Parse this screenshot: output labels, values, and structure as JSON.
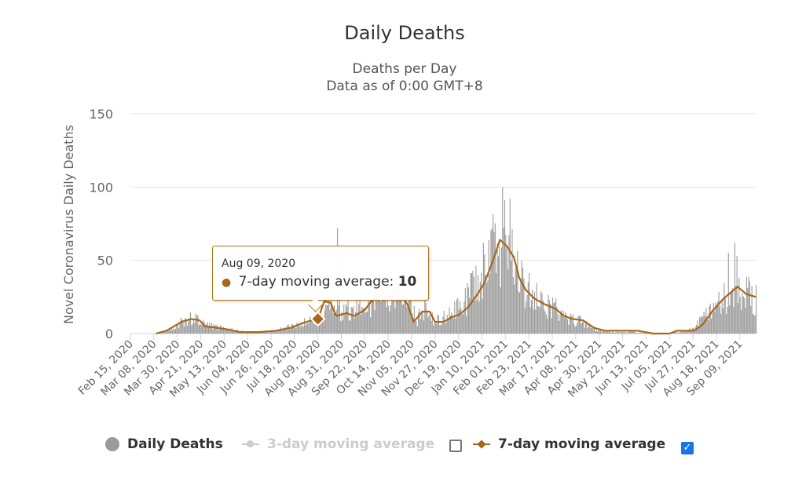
{
  "chart_data": {
    "type": "bar",
    "title": "Daily Deaths",
    "subtitle": [
      "Deaths per Day",
      "Data as of 0:00 GMT+8"
    ],
    "ylabel": "Novel Coronavirus Daily Deaths",
    "xlabel": "",
    "ylim": [
      0,
      150
    ],
    "yticks": [
      0,
      50,
      100,
      150
    ],
    "grid": true,
    "legend_position": "bottom",
    "x_start": "2020-02-15",
    "x_end": "2021-09-24",
    "xticks": [
      "Feb 15, 2020",
      "Mar 08, 2020",
      "Mar 30, 2020",
      "Apr 21, 2020",
      "May 13, 2020",
      "Jun 04, 2020",
      "Jun 26, 2020",
      "Jul 18, 2020",
      "Aug 09, 2020",
      "Aug 31, 2020",
      "Sep 22, 2020",
      "Oct 14, 2020",
      "Nov 05, 2020",
      "Nov 27, 2020",
      "Dec 19, 2020",
      "Jan 10, 2021",
      "Feb 01, 2021",
      "Feb 23, 2021",
      "Mar 17, 2021",
      "Apr 08, 2021",
      "Apr 30, 2021",
      "May 22, 2021",
      "Jun 13, 2021",
      "Jul 05, 2021",
      "Jul 27, 2021",
      "Aug 18, 2021",
      "Sep 09, 2021"
    ],
    "series": [
      {
        "name": "Daily Deaths",
        "kind": "bar",
        "color": "#9a9a9a",
        "visible": true,
        "approx_curve": [
          [
            "2020-02-15",
            0
          ],
          [
            "2020-03-10",
            0
          ],
          [
            "2020-03-20",
            2
          ],
          [
            "2020-04-03",
            8
          ],
          [
            "2020-04-12",
            11
          ],
          [
            "2020-04-22",
            7
          ],
          [
            "2020-05-05",
            4
          ],
          [
            "2020-05-18",
            3
          ],
          [
            "2020-06-01",
            1
          ],
          [
            "2020-06-20",
            1
          ],
          [
            "2020-07-05",
            3
          ],
          [
            "2020-07-22",
            6
          ],
          [
            "2020-08-09",
            10
          ],
          [
            "2020-08-20",
            20
          ],
          [
            "2020-09-05",
            15
          ],
          [
            "2020-09-22",
            16
          ],
          [
            "2020-10-05",
            26
          ],
          [
            "2020-10-20",
            30
          ],
          [
            "2020-11-01",
            25
          ],
          [
            "2020-11-10",
            10
          ],
          [
            "2020-11-20",
            18
          ],
          [
            "2020-11-27",
            8
          ],
          [
            "2020-12-10",
            12
          ],
          [
            "2020-12-25",
            22
          ],
          [
            "2021-01-10",
            40
          ],
          [
            "2021-01-22",
            58
          ],
          [
            "2021-02-05",
            52
          ],
          [
            "2021-02-15",
            35
          ],
          [
            "2021-02-28",
            25
          ],
          [
            "2021-03-17",
            18
          ],
          [
            "2021-04-01",
            10
          ],
          [
            "2021-04-15",
            8
          ],
          [
            "2021-04-28",
            2
          ],
          [
            "2021-05-15",
            1
          ],
          [
            "2021-06-01",
            1
          ],
          [
            "2021-06-20",
            0
          ],
          [
            "2021-07-15",
            1
          ],
          [
            "2021-07-27",
            3
          ],
          [
            "2021-08-10",
            14
          ],
          [
            "2021-08-25",
            25
          ],
          [
            "2021-09-05",
            30
          ],
          [
            "2021-09-24",
            24
          ]
        ],
        "peaks": [
          [
            "2020-08-27",
            72
          ],
          [
            "2021-01-29",
            100
          ],
          [
            "2021-01-31",
            91
          ],
          [
            "2021-02-05",
            92
          ],
          [
            "2021-08-29",
            55
          ],
          [
            "2021-09-04",
            62
          ],
          [
            "2021-09-06",
            53
          ]
        ]
      },
      {
        "name": "3-day moving average",
        "kind": "line",
        "color": "#cccccc",
        "visible": false,
        "values": []
      },
      {
        "name": "7-day moving average",
        "kind": "line",
        "color": "#a8661a",
        "visible": true,
        "values": [
          [
            "2020-03-10",
            0
          ],
          [
            "2020-03-20",
            2
          ],
          [
            "2020-04-03",
            8
          ],
          [
            "2020-04-12",
            10
          ],
          [
            "2020-04-20",
            9
          ],
          [
            "2020-04-25",
            5
          ],
          [
            "2020-05-05",
            4
          ],
          [
            "2020-05-15",
            3
          ],
          [
            "2020-05-28",
            1
          ],
          [
            "2020-06-15",
            1
          ],
          [
            "2020-07-01",
            2
          ],
          [
            "2020-07-15",
            4
          ],
          [
            "2020-07-25",
            7
          ],
          [
            "2020-08-03",
            9
          ],
          [
            "2020-08-09",
            10
          ],
          [
            "2020-08-15",
            22
          ],
          [
            "2020-08-21",
            21
          ],
          [
            "2020-08-26",
            12
          ],
          [
            "2020-09-05",
            14
          ],
          [
            "2020-09-12",
            12
          ],
          [
            "2020-09-22",
            16
          ],
          [
            "2020-09-28",
            22
          ],
          [
            "2020-10-05",
            25
          ],
          [
            "2020-10-15",
            25
          ],
          [
            "2020-10-25",
            27
          ],
          [
            "2020-11-01",
            20
          ],
          [
            "2020-11-07",
            8
          ],
          [
            "2020-11-15",
            15
          ],
          [
            "2020-11-22",
            15
          ],
          [
            "2020-11-27",
            8
          ],
          [
            "2020-12-05",
            8
          ],
          [
            "2020-12-12",
            11
          ],
          [
            "2020-12-20",
            13
          ],
          [
            "2020-12-28",
            18
          ],
          [
            "2021-01-05",
            26
          ],
          [
            "2021-01-12",
            34
          ],
          [
            "2021-01-20",
            49
          ],
          [
            "2021-01-27",
            64
          ],
          [
            "2021-02-02",
            60
          ],
          [
            "2021-02-09",
            52
          ],
          [
            "2021-02-14",
            38
          ],
          [
            "2021-02-20",
            30
          ],
          [
            "2021-02-28",
            24
          ],
          [
            "2021-03-10",
            20
          ],
          [
            "2021-03-20",
            17
          ],
          [
            "2021-03-28",
            12
          ],
          [
            "2021-04-05",
            10
          ],
          [
            "2021-04-15",
            9
          ],
          [
            "2021-04-25",
            4
          ],
          [
            "2021-05-05",
            2
          ],
          [
            "2021-05-20",
            2
          ],
          [
            "2021-06-05",
            2
          ],
          [
            "2021-06-20",
            0
          ],
          [
            "2021-07-05",
            0
          ],
          [
            "2021-07-12",
            2
          ],
          [
            "2021-07-28",
            2
          ],
          [
            "2021-08-05",
            6
          ],
          [
            "2021-08-15",
            16
          ],
          [
            "2021-08-25",
            24
          ],
          [
            "2021-09-02",
            29
          ],
          [
            "2021-09-07",
            32
          ],
          [
            "2021-09-15",
            27
          ],
          [
            "2021-09-24",
            25
          ]
        ]
      }
    ],
    "tooltip": {
      "date": "Aug 09, 2020",
      "series": "7-day moving average",
      "label": "7-day moving average:",
      "value": "10",
      "x": "2020-08-09",
      "y": 10
    }
  },
  "legend": {
    "items": [
      {
        "label": "Daily Deaths",
        "active": true
      },
      {
        "label": "3-day moving average",
        "active": false
      },
      {
        "label": "7-day moving average",
        "active": true
      }
    ],
    "checkboxes": [
      {
        "checked": false
      },
      {
        "checked": true
      }
    ],
    "checkmark": "✓"
  }
}
